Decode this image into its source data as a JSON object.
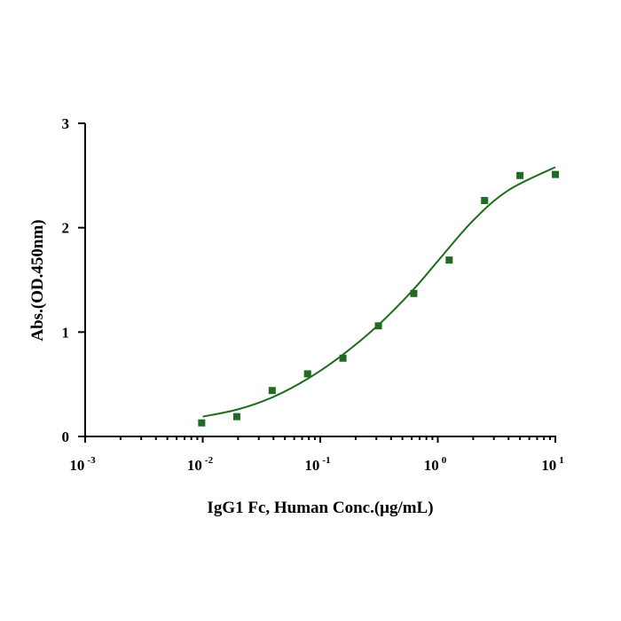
{
  "chart_data": {
    "type": "scatter",
    "xlabel": "IgG1 Fc, Human Conc.(μg/mL)",
    "ylabel": "Abs.(OD.450nm)",
    "x_scale": "log",
    "xlim": [
      0.001,
      10
    ],
    "ylim": [
      0,
      3
    ],
    "x_ticks": [
      {
        "value": 0.001,
        "base": "10",
        "exp": "-3"
      },
      {
        "value": 0.01,
        "base": "10",
        "exp": "-2"
      },
      {
        "value": 0.1,
        "base": "10",
        "exp": "-1"
      },
      {
        "value": 1,
        "base": "10",
        "exp": "0"
      },
      {
        "value": 10,
        "base": "10",
        "exp": "1"
      }
    ],
    "y_ticks": [
      {
        "value": 0,
        "label": "0"
      },
      {
        "value": 1,
        "label": "1"
      },
      {
        "value": 2,
        "label": "2"
      },
      {
        "value": 3,
        "label": "3"
      }
    ],
    "grid": false,
    "legend": false,
    "series": [
      {
        "marker": "square",
        "color": "#1f6b1f",
        "x": [
          0.0098,
          0.0195,
          0.039,
          0.078,
          0.156,
          0.3125,
          0.625,
          1.25,
          2.5,
          5,
          10
        ],
        "y": [
          0.13,
          0.19,
          0.44,
          0.6,
          0.75,
          1.06,
          1.37,
          1.69,
          2.26,
          2.5,
          2.51
        ]
      }
    ],
    "fit_curve": {
      "color": "#1f6b1f",
      "x": [
        0.01,
        0.02,
        0.04,
        0.08,
        0.15,
        0.3,
        0.6,
        1.0,
        2.0,
        4.0,
        10.0
      ],
      "y": [
        0.19,
        0.26,
        0.38,
        0.56,
        0.77,
        1.05,
        1.39,
        1.68,
        2.07,
        2.36,
        2.58
      ]
    }
  }
}
